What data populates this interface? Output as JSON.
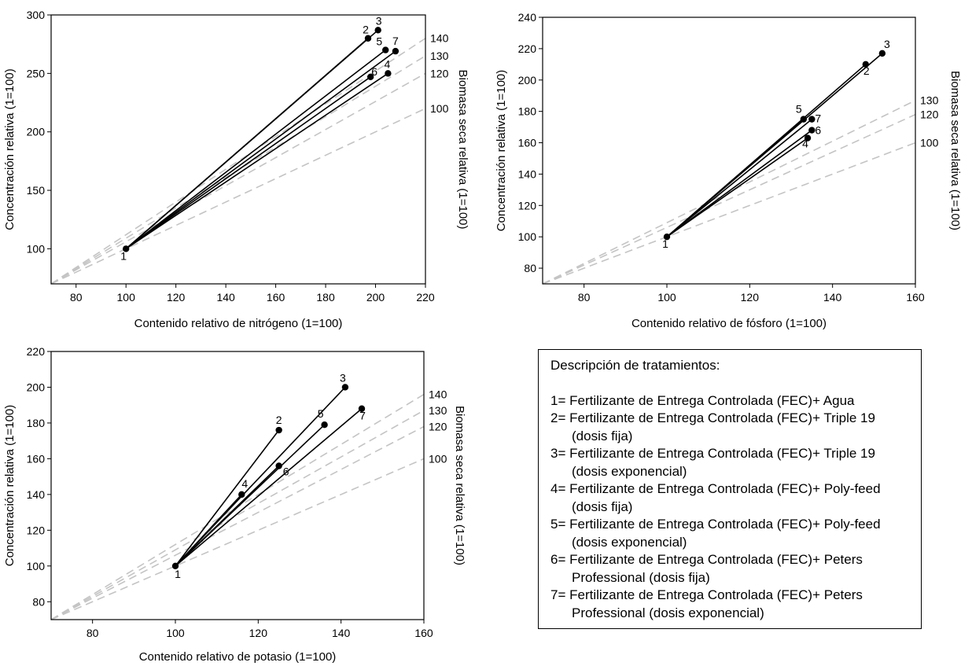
{
  "chart_data": [
    {
      "type": "scatter",
      "xlabel": "Contenido relativo de nitrógeno (1=100)",
      "ylabel": "Concentración relativa (1=100)",
      "y2label": "Biomasa seca relativa (1=100)",
      "xlim": [
        70,
        220
      ],
      "ylim": [
        70,
        300
      ],
      "xticks": [
        "80",
        "100",
        "120",
        "140",
        "160",
        "180",
        "200",
        "220"
      ],
      "yticks": [
        "100",
        "150",
        "200",
        "250",
        "300"
      ],
      "reference_lines": [
        {
          "label": "140",
          "biomass": 140
        },
        {
          "label": "130",
          "biomass": 130
        },
        {
          "label": "120",
          "biomass": 120
        },
        {
          "label": "100",
          "biomass": 100
        }
      ],
      "origin": {
        "label": "1",
        "x": 100,
        "y": 100
      },
      "points": [
        {
          "label": "2",
          "x": 197,
          "y": 280
        },
        {
          "label": "3",
          "x": 201,
          "y": 287
        },
        {
          "label": "4",
          "x": 205,
          "y": 250
        },
        {
          "label": "5",
          "x": 204,
          "y": 270
        },
        {
          "label": "6",
          "x": 198,
          "y": 247
        },
        {
          "label": "7",
          "x": 208,
          "y": 269
        }
      ]
    },
    {
      "type": "scatter",
      "xlabel": "Contenido relativo de fósforo (1=100)",
      "ylabel": "Concentración relativa (1=100)",
      "y2label": "Biomasa seca relativa (1=100)",
      "xlim": [
        70,
        160
      ],
      "ylim": [
        70,
        240
      ],
      "xticks": [
        "80",
        "100",
        "120",
        "140",
        "160"
      ],
      "yticks": [
        "80",
        "100",
        "120",
        "140",
        "160",
        "180",
        "200",
        "220",
        "240"
      ],
      "reference_lines": [
        {
          "label": "130",
          "biomass": 130
        },
        {
          "label": "120",
          "biomass": 120
        },
        {
          "label": "100",
          "biomass": 100
        }
      ],
      "origin": {
        "label": "1",
        "x": 100,
        "y": 100
      },
      "points": [
        {
          "label": "2",
          "x": 148,
          "y": 210
        },
        {
          "label": "3",
          "x": 152,
          "y": 217
        },
        {
          "label": "4",
          "x": 134,
          "y": 163
        },
        {
          "label": "5",
          "x": 133,
          "y": 175
        },
        {
          "label": "6",
          "x": 135,
          "y": 168
        },
        {
          "label": "7",
          "x": 135,
          "y": 175
        }
      ]
    },
    {
      "type": "scatter",
      "xlabel": "Contenido relativo de potasio (1=100)",
      "ylabel": "Concentración relativa (1=100)",
      "y2label": "Biomasa seca relativa (1=100)",
      "xlim": [
        70,
        160
      ],
      "ylim": [
        70,
        220
      ],
      "xticks": [
        "80",
        "100",
        "120",
        "140",
        "160"
      ],
      "yticks": [
        "80",
        "100",
        "120",
        "140",
        "160",
        "180",
        "200",
        "220"
      ],
      "reference_lines": [
        {
          "label": "140",
          "biomass": 140
        },
        {
          "label": "130",
          "biomass": 130
        },
        {
          "label": "120",
          "biomass": 120
        },
        {
          "label": "100",
          "biomass": 100
        }
      ],
      "origin": {
        "label": "1",
        "x": 100,
        "y": 100
      },
      "points": [
        {
          "label": "2",
          "x": 125,
          "y": 176
        },
        {
          "label": "3",
          "x": 141,
          "y": 200
        },
        {
          "label": "4",
          "x": 116,
          "y": 140
        },
        {
          "label": "5",
          "x": 136,
          "y": 179
        },
        {
          "label": "6",
          "x": 125,
          "y": 156
        },
        {
          "label": "7",
          "x": 145,
          "y": 188
        }
      ]
    }
  ],
  "legend": {
    "title": "Descripción de tratamientos:",
    "items": [
      "1= Fertilizante de Entrega Controlada (FEC)+ Agua",
      "2= Fertilizante de Entrega Controlada (FEC)+ Triple 19 (dosis fija)",
      "3= Fertilizante de Entrega Controlada (FEC)+ Triple 19 (dosis exponencial)",
      "4= Fertilizante de Entrega Controlada (FEC)+ Poly-feed (dosis fija)",
      "5= Fertilizante de Entrega Controlada (FEC)+ Poly-feed (dosis exponencial)",
      "6= Fertilizante de Entrega Controlada (FEC)+ Peters Professional (dosis fija)",
      "7= Fertilizante de Entrega Controlada (FEC)+ Peters Professional (dosis exponencial)"
    ]
  }
}
